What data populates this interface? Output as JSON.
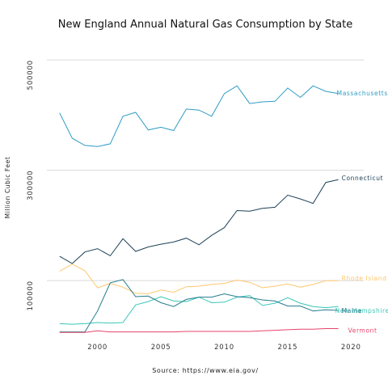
{
  "chart_data": {
    "type": "line",
    "title": "New England Annual Natural Gas Consumption by State",
    "xlabel": "",
    "ylabel": "Million Cubic Feet",
    "source": "Source: https://www.eia.gov/",
    "x": [
      1997,
      1998,
      1999,
      2000,
      2001,
      2002,
      2003,
      2004,
      2005,
      2006,
      2007,
      2008,
      2009,
      2010,
      2011,
      2012,
      2013,
      2014,
      2015,
      2016,
      2017,
      2018,
      2019
    ],
    "xlim": [
      1996,
      2021
    ],
    "ylim": [
      5000,
      550000
    ],
    "x_ticks": [
      2000,
      2005,
      2010,
      2015,
      2020
    ],
    "y_ticks": [
      100000,
      300000,
      500000
    ],
    "y_tick_labels": [
      "100000",
      "300000",
      "500000"
    ],
    "grid": "horizontal",
    "legend": "line-end labels",
    "series": [
      {
        "name": "Massachusetts",
        "color": "#2f9cc4",
        "values": [
          404000,
          358000,
          345000,
          343000,
          348000,
          398000,
          405000,
          373000,
          378000,
          372000,
          411000,
          409000,
          398000,
          439000,
          453000,
          421000,
          424000,
          425000,
          449000,
          432000,
          453000,
          443000,
          439000
        ]
      },
      {
        "name": "Connecticut",
        "color": "#1d4157",
        "values": [
          144000,
          131000,
          152000,
          158000,
          145000,
          176000,
          153000,
          161000,
          166000,
          170000,
          177000,
          165000,
          182000,
          196000,
          227000,
          226000,
          231000,
          233000,
          255000,
          248000,
          240000,
          278000,
          283000
        ]
      },
      {
        "name": "Rhode Island",
        "color": "#ffc76e",
        "values": [
          117000,
          130000,
          118000,
          87000,
          95000,
          88000,
          77000,
          76000,
          83000,
          79000,
          89000,
          90000,
          93000,
          95000,
          101000,
          97000,
          87000,
          90000,
          94000,
          88000,
          93000,
          100000,
          100000
        ]
      },
      {
        "name": "New Hampshire",
        "color": "#39c7b5",
        "values": [
          22000,
          21000,
          22000,
          24000,
          23000,
          24000,
          56000,
          62000,
          71000,
          63000,
          62000,
          70000,
          60000,
          61000,
          70000,
          73000,
          55000,
          59000,
          69000,
          59000,
          53000,
          51000,
          53000
        ]
      },
      {
        "name": "Maine",
        "color": "#237c8d",
        "values": [
          7000,
          7000,
          7000,
          45000,
          96000,
          102000,
          71000,
          72000,
          60000,
          53000,
          66000,
          70000,
          70000,
          76000,
          71000,
          69000,
          65000,
          63000,
          54000,
          54000,
          45000,
          47000,
          46000
        ]
      },
      {
        "name": "Vermont",
        "color": "#e8436a",
        "values": [
          6000,
          6000,
          6000,
          9000,
          7000,
          7000,
          7000,
          7000,
          7000,
          7000,
          8000,
          8000,
          8000,
          8000,
          8000,
          8000,
          9000,
          10000,
          11000,
          12000,
          12000,
          13000,
          13000
        ]
      }
    ]
  }
}
